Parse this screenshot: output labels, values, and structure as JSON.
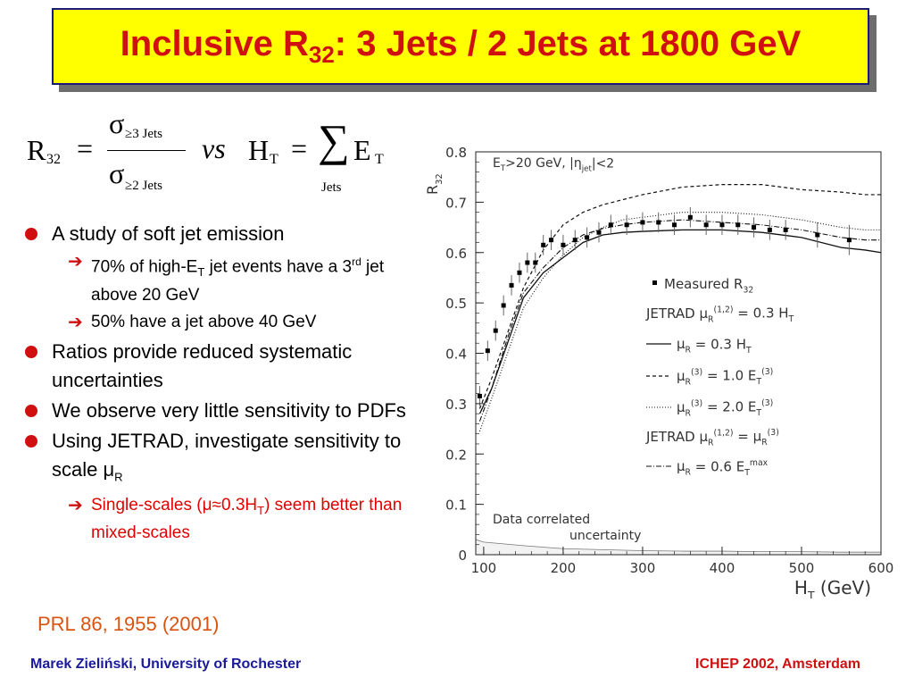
{
  "slide": {
    "title_prefix": "Inclusive R",
    "title_sub": "32",
    "title_suffix": ": 3 Jets / 2 Jets at 1800 GeV"
  },
  "formula": {
    "r": "R",
    "r_sub": "32",
    "eq1": "=",
    "sigma1": "σ",
    "sigma1_sub": "≥3 Jets",
    "sigma2": "σ",
    "sigma2_sub": "≥2 Jets",
    "vs": "vs",
    "h": "H",
    "h_sub": "T",
    "eq2": "=",
    "sum": "∑",
    "sum_under": "Jets",
    "e": "E",
    "e_sub": "T"
  },
  "bullets": {
    "b1": "A study of soft jet emission",
    "b1_s1_a": "70% of high-E",
    "b1_s1_sub": "T",
    "b1_s1_b": " jet events have a 3",
    "b1_s1_sup": "rd",
    "b1_s1_c": " jet above 20 GeV",
    "b1_s2": "50% have a jet above 40 GeV",
    "b2": "Ratios provide reduced systematic uncertainties",
    "b3": "We observe very little sensitivity to PDFs",
    "b4_a": "Using JETRAD, investigate sensitivity to scale μ",
    "b4_sub": "R",
    "b4_s1_a": "Single-scales (μ≈0.3H",
    "b4_s1_sub": "T",
    "b4_s1_b": ") seem better than mixed-scales",
    "arrow": "➔"
  },
  "citation": "PRL 86, 1955 (2001)",
  "footer": {
    "left": "Marek Zieliński, University of Rochester",
    "right": "ICHEP 2002, Amsterdam"
  },
  "colors": {
    "title_text": "#d01010",
    "title_bg": "#ffff00",
    "bullet_dot": "#d01010",
    "footer_left": "#1a1a9a",
    "footer_right": "#d01010",
    "citation": "#d9530f"
  },
  "chart_data": {
    "type": "scatter",
    "xlabel_main": "H",
    "xlabel_sub": "T",
    "xlabel_unit": "(GeV)",
    "ylabel_main": "R",
    "ylabel_sub": "32",
    "xlim": [
      90,
      600
    ],
    "ylim": [
      0,
      0.8
    ],
    "xticks": [
      "100",
      "200",
      "300",
      "400",
      "500",
      "600"
    ],
    "yticks": [
      "0",
      "0.1",
      "0.2",
      "0.3",
      "0.4",
      "0.5",
      "0.6",
      "0.7",
      "0.8"
    ],
    "cut_label": "E_T>20 GeV, |η_jet|<2",
    "annotation_line1": "Data correlated",
    "annotation_line2": "uncertainty",
    "legend": {
      "measured": "Measured R_32",
      "group1": "JETRAD μ_R^(1,2) = 0.3 H_T",
      "s1": "μ_R = 0.3 H_T",
      "s2": "μ_R^(3) = 1.0 E_T^(3)",
      "s3": "μ_R^(3) = 2.0 E_T^(3)",
      "group2": "JETRAD μ_R^(1,2) = μ_R^(3)",
      "s4": "μ_R = 0.6 E_T^max"
    },
    "measured": {
      "x": [
        95,
        105,
        115,
        125,
        135,
        145,
        155,
        165,
        175,
        185,
        200,
        215,
        230,
        245,
        260,
        280,
        300,
        320,
        340,
        360,
        380,
        400,
        420,
        440,
        460,
        480,
        520,
        560
      ],
      "y": [
        0.315,
        0.405,
        0.445,
        0.495,
        0.535,
        0.56,
        0.58,
        0.58,
        0.615,
        0.625,
        0.615,
        0.625,
        0.63,
        0.64,
        0.655,
        0.655,
        0.66,
        0.66,
        0.655,
        0.67,
        0.655,
        0.655,
        0.655,
        0.65,
        0.645,
        0.645,
        0.635,
        0.625
      ],
      "err": [
        0.02,
        0.02,
        0.02,
        0.02,
        0.02,
        0.02,
        0.02,
        0.02,
        0.02,
        0.02,
        0.02,
        0.02,
        0.02,
        0.02,
        0.02,
        0.02,
        0.02,
        0.02,
        0.02,
        0.02,
        0.02,
        0.02,
        0.02,
        0.02,
        0.02,
        0.02,
        0.025,
        0.03
      ]
    },
    "series": [
      {
        "key": "s1",
        "style": "solid",
        "x": [
          95,
          110,
          130,
          150,
          175,
          200,
          225,
          250,
          275,
          300,
          350,
          400,
          450,
          500,
          550,
          580,
          600
        ],
        "y": [
          0.28,
          0.33,
          0.42,
          0.51,
          0.56,
          0.59,
          0.62,
          0.635,
          0.64,
          0.642,
          0.645,
          0.645,
          0.64,
          0.63,
          0.61,
          0.605,
          0.6
        ]
      },
      {
        "key": "s2",
        "style": "dashed",
        "x": [
          95,
          110,
          130,
          150,
          175,
          200,
          225,
          250,
          275,
          300,
          350,
          400,
          450,
          500,
          550,
          580,
          600
        ],
        "y": [
          0.29,
          0.35,
          0.44,
          0.53,
          0.605,
          0.655,
          0.68,
          0.695,
          0.705,
          0.715,
          0.73,
          0.735,
          0.735,
          0.725,
          0.72,
          0.715,
          0.715
        ]
      },
      {
        "key": "s3",
        "style": "dotted",
        "x": [
          95,
          110,
          130,
          150,
          175,
          200,
          225,
          250,
          275,
          300,
          350,
          400,
          450,
          500,
          550,
          580,
          600
        ],
        "y": [
          0.245,
          0.31,
          0.4,
          0.49,
          0.55,
          0.595,
          0.63,
          0.65,
          0.665,
          0.67,
          0.68,
          0.68,
          0.675,
          0.665,
          0.65,
          0.645,
          0.645
        ]
      },
      {
        "key": "s4",
        "style": "dashdot",
        "x": [
          95,
          110,
          130,
          150,
          175,
          200,
          225,
          250,
          275,
          300,
          350,
          400,
          450,
          500,
          550,
          580,
          600
        ],
        "y": [
          0.265,
          0.33,
          0.43,
          0.52,
          0.57,
          0.61,
          0.635,
          0.648,
          0.655,
          0.66,
          0.665,
          0.66,
          0.655,
          0.645,
          0.63,
          0.625,
          0.625
        ]
      },
      {
        "key": "band",
        "style": "band",
        "x": [
          90,
          100,
          150,
          200,
          250,
          300,
          350,
          400,
          450,
          500,
          550,
          600
        ],
        "y": [
          0.03,
          0.025,
          0.018,
          0.012,
          0.01,
          0.008,
          0.007,
          0.007,
          0.006,
          0.006,
          0.005,
          0.005
        ]
      }
    ]
  }
}
